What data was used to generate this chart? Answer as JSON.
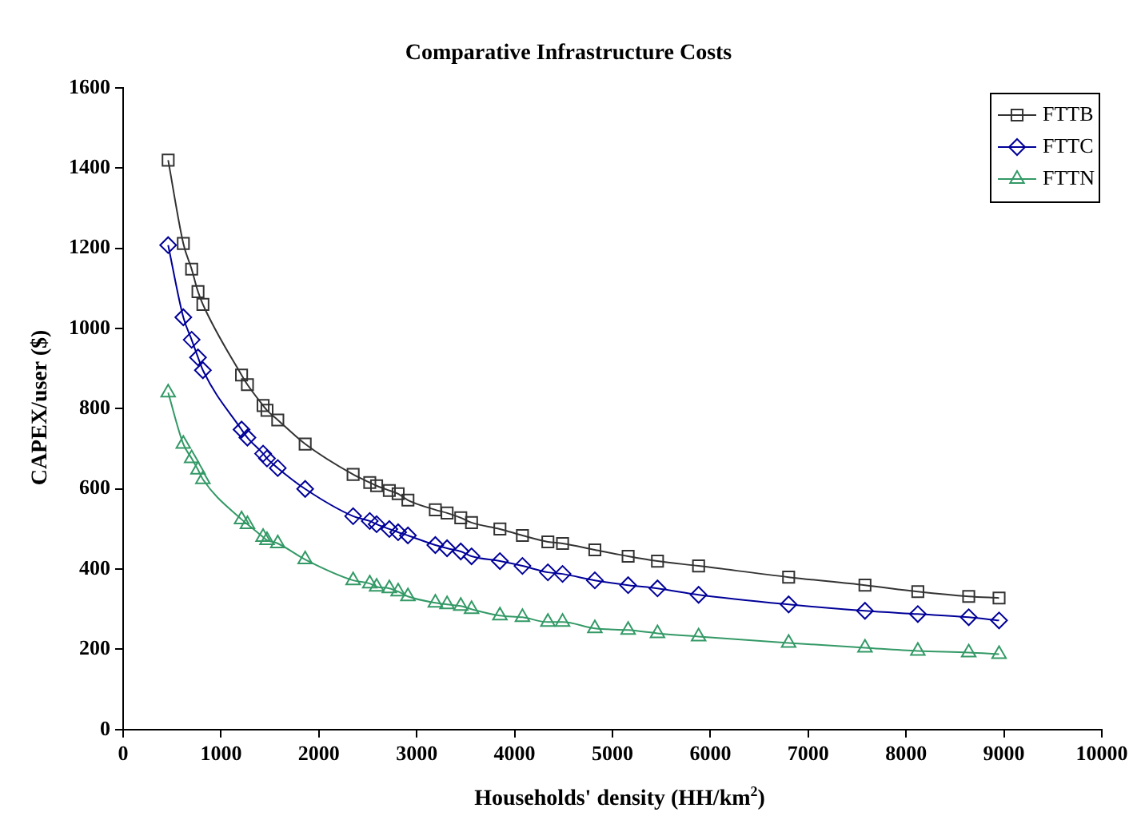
{
  "chart_data": {
    "type": "line",
    "title": "Comparative Infrastructure Costs",
    "xlabel": "Households' density (HH/km$^{2}$)",
    "ylabel": "CAPEX/user ($)",
    "x": [
      460,
      615,
      700,
      765,
      815,
      1210,
      1270,
      1430,
      1470,
      1580,
      1860,
      2350,
      2520,
      2590,
      2720,
      2810,
      2910,
      3190,
      3310,
      3450,
      3560,
      3850,
      4080,
      4340,
      4490,
      4820,
      5160,
      5460,
      5880,
      6800,
      7580,
      8120,
      8640,
      8950
    ],
    "series": [
      {
        "name": "FTTB",
        "color": "#333333",
        "marker": "square",
        "values": [
          1420,
          1212,
          1148,
          1092,
          1060,
          884,
          860,
          808,
          796,
          772,
          712,
          636,
          616,
          608,
          596,
          588,
          572,
          548,
          540,
          528,
          516,
          500,
          484,
          468,
          464,
          448,
          432,
          420,
          408,
          380,
          360,
          344,
          332,
          328
        ]
      },
      {
        "name": "FTTC",
        "color": "#000099",
        "marker": "diamond",
        "values": [
          1208,
          1028,
          972,
          928,
          896,
          748,
          728,
          688,
          676,
          652,
          600,
          532,
          520,
          512,
          500,
          492,
          484,
          460,
          452,
          444,
          432,
          420,
          408,
          392,
          388,
          372,
          360,
          352,
          336,
          312,
          296,
          288,
          280,
          272
        ]
      },
      {
        "name": "FTTN",
        "color": "#339966",
        "marker": "triangle",
        "values": [
          840,
          712,
          676,
          648,
          624,
          524,
          512,
          480,
          472,
          464,
          424,
          372,
          364,
          356,
          352,
          344,
          332,
          316,
          312,
          308,
          300,
          284,
          280,
          268,
          268,
          252,
          248,
          240,
          232,
          216,
          204,
          196,
          192,
          188
        ]
      }
    ],
    "xlim": [
      0,
      10000
    ],
    "xticks": [
      0,
      1000,
      2000,
      3000,
      4000,
      5000,
      6000,
      7000,
      8000,
      9000,
      10000
    ],
    "ylim": [
      0,
      1600
    ],
    "yticks": [
      0,
      200,
      400,
      600,
      800,
      1000,
      1200,
      1400,
      1600
    ],
    "legend": "top right",
    "line_style": "solid"
  }
}
